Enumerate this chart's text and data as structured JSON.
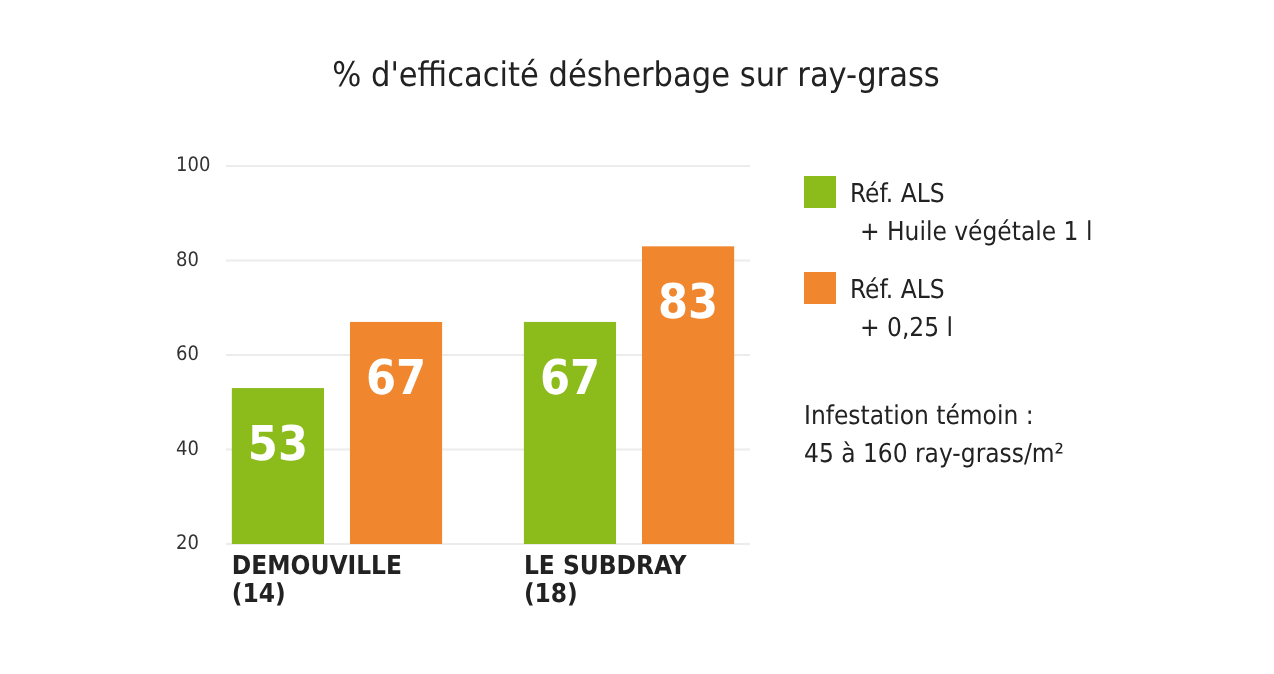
{
  "chart_data": {
    "type": "bar",
    "title": "% d'efficacité désherbage sur ray-grass",
    "categories": [
      "DEMOUVILLE\n(14)",
      "LE SUBDRAY\n(18)"
    ],
    "series": [
      {
        "name": "Réf. ALS\n+ Huile végétale 1 l",
        "color": "#8cbb1c",
        "values": [
          53,
          67
        ]
      },
      {
        "name": "Réf. ALS\n+ 0,25 l",
        "color": "#f0862e",
        "values": [
          67,
          83
        ]
      }
    ],
    "ylim": [
      20,
      100
    ],
    "yticks": [
      20,
      40,
      60,
      80,
      100
    ],
    "grid": "y",
    "legend": "right",
    "data_labels": true,
    "annotations": [
      "Infestation témoin :\n45 à 160 ray-grass/m²"
    ]
  }
}
